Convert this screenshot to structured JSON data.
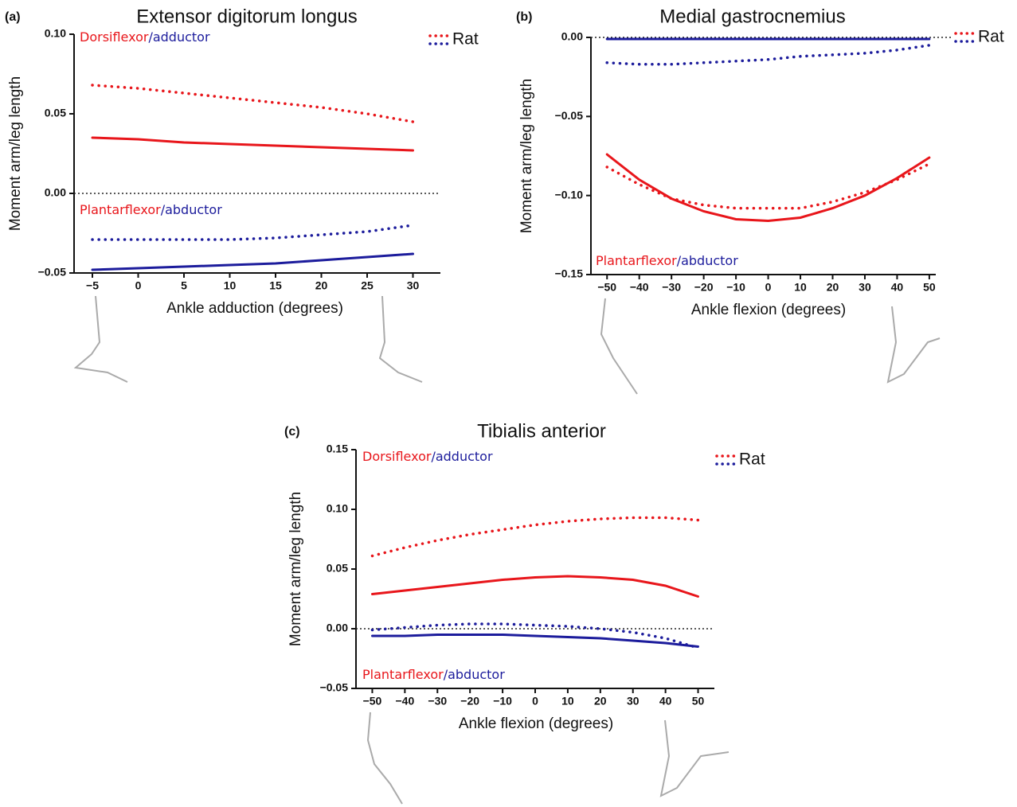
{
  "chart_data": [
    {
      "type": "line",
      "panel": "(a)",
      "title": "Extensor digitorum longus",
      "xlabel": "Ankle adduction (degrees)",
      "ylabel": "Moment arm/leg length",
      "x": [
        -5,
        0,
        5,
        10,
        15,
        20,
        25,
        30
      ],
      "xlim": [
        -7,
        33
      ],
      "xticks": [
        {
          "value": -5,
          "label": "−5"
        },
        0,
        5,
        10,
        15,
        20,
        25,
        30
      ],
      "ylim": [
        -0.05,
        0.1
      ],
      "yticks": [
        {
          "value": -0.05,
          "label": "−0.05"
        },
        {
          "value": 0,
          "label": "0.00"
        },
        {
          "value": 0.05,
          "label": "0.05"
        },
        {
          "value": 0.1,
          "label": "0.10"
        }
      ],
      "zero_line": true,
      "legend_label": "Rat",
      "annotations": [
        {
          "parts": [
            "Dorsiflexor",
            "/adductor"
          ],
          "colors": [
            "#e8161b",
            "#1c1c9c"
          ]
        },
        {
          "parts": [
            "Plantarflexor",
            "/abductor"
          ],
          "colors": [
            "#e8161b",
            "#1c1c9c"
          ]
        }
      ],
      "series": [
        {
          "color": "#e8161b",
          "style": "dotted",
          "values": [
            0.068,
            0.066,
            0.063,
            0.06,
            0.057,
            0.054,
            0.05,
            0.045
          ]
        },
        {
          "color": "#e8161b",
          "style": "solid",
          "values": [
            0.035,
            0.034,
            0.032,
            0.031,
            0.03,
            0.029,
            0.028,
            0.027
          ]
        },
        {
          "color": "#1c1c9c",
          "style": "dotted",
          "values": [
            -0.029,
            -0.029,
            -0.029,
            -0.029,
            -0.028,
            -0.026,
            -0.024,
            -0.02
          ]
        },
        {
          "color": "#1c1c9c",
          "style": "solid",
          "values": [
            -0.048,
            -0.047,
            -0.046,
            -0.045,
            -0.044,
            -0.042,
            -0.04,
            -0.038
          ]
        }
      ]
    },
    {
      "type": "line",
      "panel": "(b)",
      "title": "Medial gastrocnemius",
      "xlabel": "Ankle flexion (degrees)",
      "ylabel": "Moment arm/leg length",
      "x": [
        -50,
        -40,
        -30,
        -20,
        -10,
        0,
        10,
        20,
        30,
        40,
        50
      ],
      "xlim": [
        -55,
        52
      ],
      "xticks": [
        {
          "value": -50,
          "label": "−50"
        },
        {
          "value": -40,
          "label": "−40"
        },
        {
          "value": -30,
          "label": "−30"
        },
        {
          "value": -20,
          "label": "−20"
        },
        {
          "value": -10,
          "label": "−10"
        },
        0,
        10,
        20,
        30,
        40,
        50
      ],
      "ylim": [
        -0.15,
        0
      ],
      "yticks": [
        {
          "value": -0.15,
          "label": "−0.15"
        },
        {
          "value": -0.1,
          "label": "−0.10"
        },
        {
          "value": -0.05,
          "label": "−0.05"
        },
        {
          "value": 0,
          "label": "0.00"
        }
      ],
      "zero_line": true,
      "legend_label": "Rat",
      "annotations": [
        {
          "parts": [
            "Plantarflexor",
            "/abductor"
          ],
          "colors": [
            "#e8161b",
            "#1c1c9c"
          ]
        }
      ],
      "series": [
        {
          "color": "#e8161b",
          "style": "dotted",
          "values": [
            -0.082,
            -0.093,
            -0.102,
            -0.106,
            -0.108,
            -0.108,
            -0.108,
            -0.104,
            -0.098,
            -0.09,
            -0.08
          ]
        },
        {
          "color": "#e8161b",
          "style": "solid",
          "values": [
            -0.074,
            -0.09,
            -0.102,
            -0.11,
            -0.115,
            -0.116,
            -0.114,
            -0.108,
            -0.1,
            -0.089,
            -0.076
          ]
        },
        {
          "color": "#1c1c9c",
          "style": "dotted",
          "values": [
            -0.016,
            -0.017,
            -0.017,
            -0.016,
            -0.015,
            -0.014,
            -0.012,
            -0.011,
            -0.01,
            -0.008,
            -0.005
          ]
        },
        {
          "color": "#1c1c9c",
          "style": "solid",
          "values": [
            -0.001,
            -0.001,
            -0.001,
            -0.001,
            -0.001,
            -0.001,
            -0.001,
            -0.001,
            -0.001,
            -0.001,
            -0.001
          ]
        }
      ]
    },
    {
      "type": "line",
      "panel": "(c)",
      "title": "Tibialis anterior",
      "xlabel": "Ankle flexion (degrees)",
      "ylabel": "Moment arm/leg length",
      "x": [
        -50,
        -40,
        -30,
        -20,
        -10,
        0,
        10,
        20,
        30,
        40,
        50
      ],
      "xlim": [
        -55,
        55
      ],
      "xticks": [
        {
          "value": -50,
          "label": "−50"
        },
        {
          "value": -40,
          "label": "−40"
        },
        {
          "value": -30,
          "label": "−30"
        },
        {
          "value": -20,
          "label": "−20"
        },
        {
          "value": -10,
          "label": "−10"
        },
        0,
        10,
        20,
        30,
        40,
        50
      ],
      "ylim": [
        -0.05,
        0.15
      ],
      "yticks": [
        {
          "value": -0.05,
          "label": "−0.05"
        },
        {
          "value": 0,
          "label": "0.00"
        },
        {
          "value": 0.05,
          "label": "0.05"
        },
        {
          "value": 0.1,
          "label": "0.10"
        },
        {
          "value": 0.15,
          "label": "0.15"
        }
      ],
      "zero_line": true,
      "legend_label": "Rat",
      "annotations": [
        {
          "parts": [
            "Dorsiflexor",
            "/adductor"
          ],
          "colors": [
            "#e8161b",
            "#1c1c9c"
          ]
        },
        {
          "parts": [
            "Plantarflexor",
            "/abductor"
          ],
          "colors": [
            "#e8161b",
            "#1c1c9c"
          ]
        }
      ],
      "series": [
        {
          "color": "#e8161b",
          "style": "dotted",
          "values": [
            0.061,
            0.068,
            0.074,
            0.079,
            0.083,
            0.087,
            0.09,
            0.092,
            0.093,
            0.093,
            0.091
          ]
        },
        {
          "color": "#e8161b",
          "style": "solid",
          "values": [
            0.029,
            0.032,
            0.035,
            0.038,
            0.041,
            0.043,
            0.044,
            0.043,
            0.041,
            0.036,
            0.027
          ]
        },
        {
          "color": "#1c1c9c",
          "style": "dotted",
          "values": [
            -0.001,
            0.001,
            0.003,
            0.004,
            0.004,
            0.003,
            0.002,
            0,
            -0.003,
            -0.008,
            -0.016
          ]
        },
        {
          "color": "#1c1c9c",
          "style": "solid",
          "values": [
            -0.006,
            -0.006,
            -0.005,
            -0.005,
            -0.005,
            -0.006,
            -0.007,
            -0.008,
            -0.01,
            -0.012,
            -0.015
          ]
        }
      ]
    }
  ]
}
